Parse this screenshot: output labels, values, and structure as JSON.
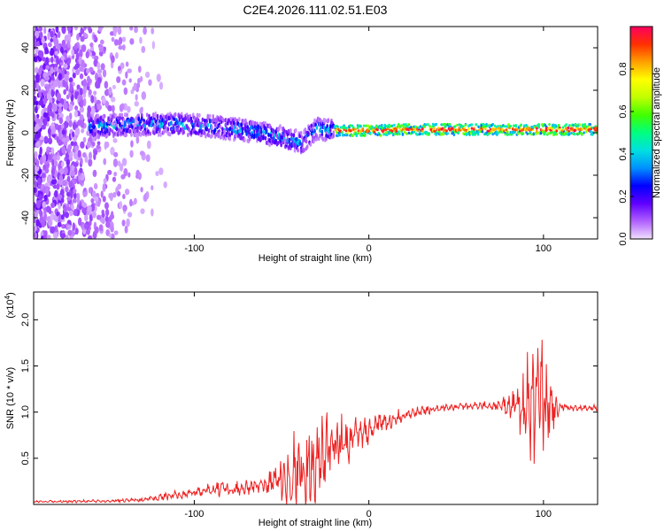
{
  "chart_data": [
    {
      "type": "heatmap",
      "title": "C2E4.2026.111.02.51.E03",
      "xlabel": "Height of straight line (km)",
      "ylabel": "Frequency (Hz)",
      "xlim": [
        -192,
        131
      ],
      "ylim": [
        -50,
        50
      ],
      "xticks": [
        -100,
        0,
        100
      ],
      "xtick_labels": [
        "-100",
        "0",
        "100"
      ],
      "yticks": [
        -40,
        -20,
        0,
        20,
        40
      ],
      "ytick_labels": [
        "-40",
        "-20",
        "0",
        "20",
        "40"
      ],
      "colorbar": {
        "label": "Normalized spectral amplitude",
        "range": [
          0,
          1
        ],
        "ticks": [
          0.0,
          0.2,
          0.4,
          0.6,
          0.8
        ],
        "tick_labels": [
          "0.0",
          "0.2",
          "0.4",
          "0.6",
          "0.8"
        ],
        "colors": [
          "#f0e0ff",
          "#b060ff",
          "#6000ff",
          "#0000ff",
          "#0090ff",
          "#00e0e0",
          "#00ff80",
          "#40ff00",
          "#c0ff00",
          "#ffff00",
          "#ffa000",
          "#ff3000",
          "#ff0060"
        ]
      },
      "ridge": {
        "x": [
          -150,
          -130,
          -110,
          -90,
          -70,
          -55,
          -45,
          -38,
          -35,
          -30,
          -25,
          -20,
          -10,
          0,
          20,
          50,
          80,
          100,
          131
        ],
        "freq": [
          3,
          4,
          4,
          3,
          1,
          -1,
          -3,
          -5,
          -2,
          2,
          1,
          1,
          1,
          1,
          1.5,
          1.5,
          1.5,
          1.5,
          1.5
        ]
      }
    },
    {
      "type": "line",
      "xlabel": "Height of straight line (km)",
      "ylabel": "SNR (10 * v/v)",
      "y_multiplier_label": "(x10",
      "y_multiplier_exp": "4",
      "y_multiplier_close": ")",
      "xlim": [
        -192,
        131
      ],
      "ylim": [
        0,
        23000
      ],
      "xticks": [
        -100,
        0,
        100
      ],
      "xtick_labels": [
        "-100",
        "0",
        "100"
      ],
      "yticks": [
        5000,
        10000,
        15000,
        20000
      ],
      "ytick_labels": [
        "0.5",
        "1.0",
        "1.5",
        "2.0"
      ],
      "line_color": "#ee2222",
      "envelope": {
        "x": [
          -192,
          -160,
          -130,
          -115,
          -100,
          -85,
          -70,
          -55,
          -45,
          -35,
          -28,
          -20,
          -10,
          0,
          10,
          20,
          40,
          60,
          75,
          85,
          90,
          95,
          98,
          102,
          110,
          120,
          131
        ],
        "base": [
          300,
          350,
          500,
          900,
          1300,
          1600,
          1800,
          2500,
          3500,
          4500,
          5000,
          6000,
          7000,
          8200,
          9000,
          9700,
          10500,
          10700,
          10700,
          10800,
          10700,
          10500,
          10600,
          10600,
          10500,
          10400,
          10500
        ],
        "amp": [
          100,
          150,
          200,
          400,
          500,
          800,
          800,
          1400,
          3500,
          5000,
          4500,
          3500,
          2200,
          1600,
          1000,
          600,
          400,
          350,
          500,
          2000,
          4500,
          7000,
          8000,
          4000,
          500,
          300,
          300
        ]
      }
    }
  ]
}
